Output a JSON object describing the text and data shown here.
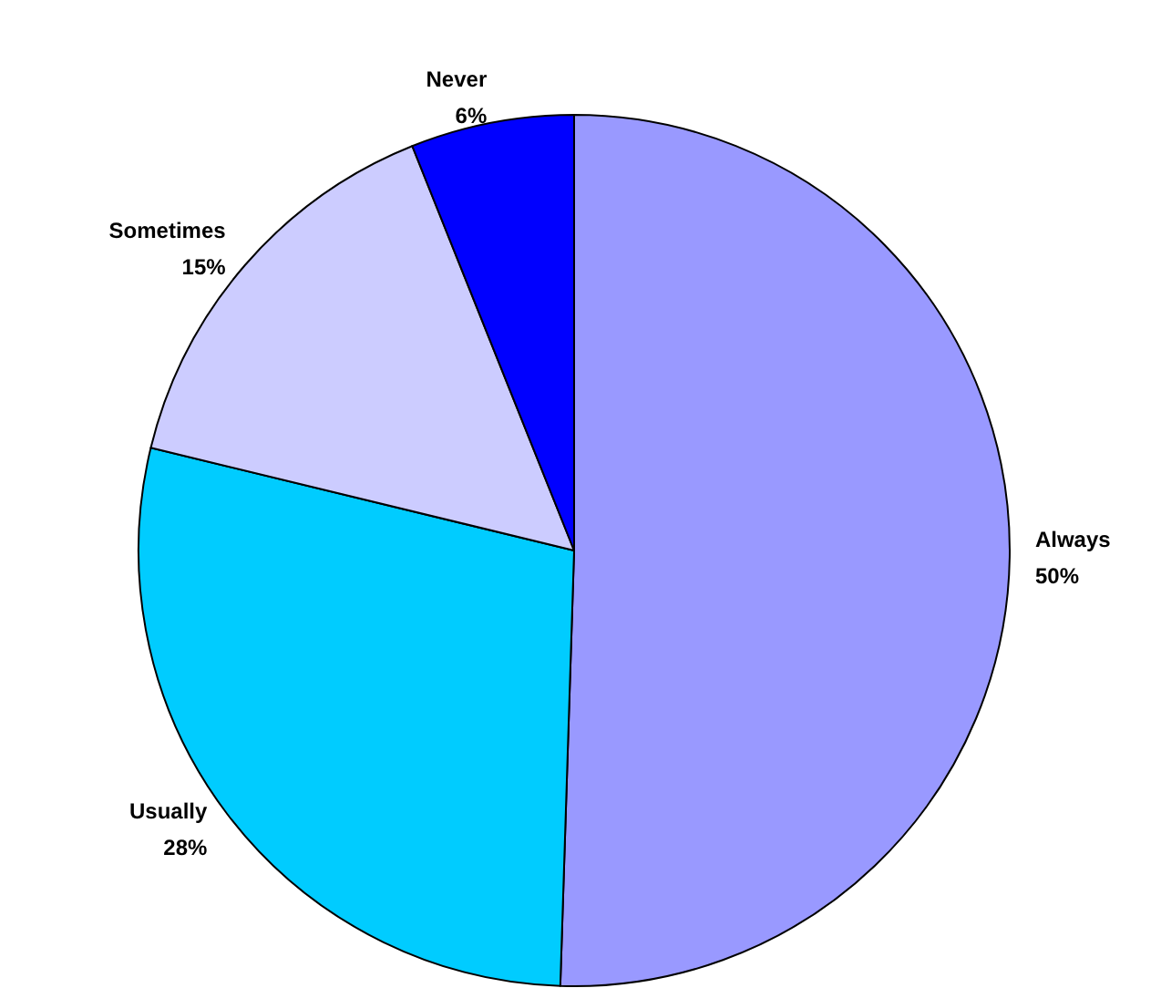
{
  "chart_data": {
    "type": "pie",
    "categories": [
      "Always",
      "Usually",
      "Sometimes",
      "Never"
    ],
    "values": [
      50,
      28,
      15,
      6
    ],
    "value_labels": [
      "50%",
      "28%",
      "15%",
      "6%"
    ],
    "colors": [
      "#9999ff",
      "#00ccff",
      "#ccccff",
      "#0000ff"
    ],
    "legend": false
  }
}
